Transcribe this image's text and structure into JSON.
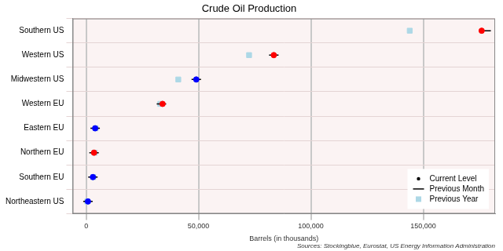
{
  "chart_data": {
    "type": "scatter",
    "title": "Crude Oil Production",
    "x_label": "Barrels (in thousands)",
    "annotation": "Sources: Stockingblue, Eurostat, US Energy Information Administration",
    "orientation": "horizontal",
    "categories": [
      "Southern US",
      "Western US",
      "Midwestern US",
      "Western EU",
      "Eastern EU",
      "Northern EU",
      "Southern EU",
      "Northeastern US"
    ],
    "series": [
      {
        "name": "Current Level",
        "color": "#000000",
        "marker": "circle",
        "colors": [
          "#ff0000",
          "#ff0000",
          "#0000ff",
          "#ff0000",
          "#0000ff",
          "#ff0000",
          "#0000ff",
          "#0000ff"
        ],
        "values": [
          176000,
          83500,
          49000,
          34000,
          4000,
          3500,
          3000,
          800
        ]
      },
      {
        "name": "Previous Month",
        "color": "#000000",
        "marker": "line",
        "values": [
          178000,
          83500,
          49000,
          33500,
          4000,
          3500,
          3000,
          800
        ]
      },
      {
        "name": "Previous Year",
        "color": "#add8e6",
        "marker": "square",
        "values": [
          144000,
          72500,
          41000,
          33000,
          4200,
          3800,
          3200,
          500
        ]
      }
    ],
    "xlim": [
      -6000,
      182000
    ],
    "xticks": [
      {
        "value": 0,
        "label": "0"
      },
      {
        "value": 50000,
        "label": "50,000"
      },
      {
        "value": 100000,
        "label": "100,000"
      },
      {
        "value": 150000,
        "label": "150,000"
      }
    ],
    "grid": true,
    "legend": "lower right"
  }
}
